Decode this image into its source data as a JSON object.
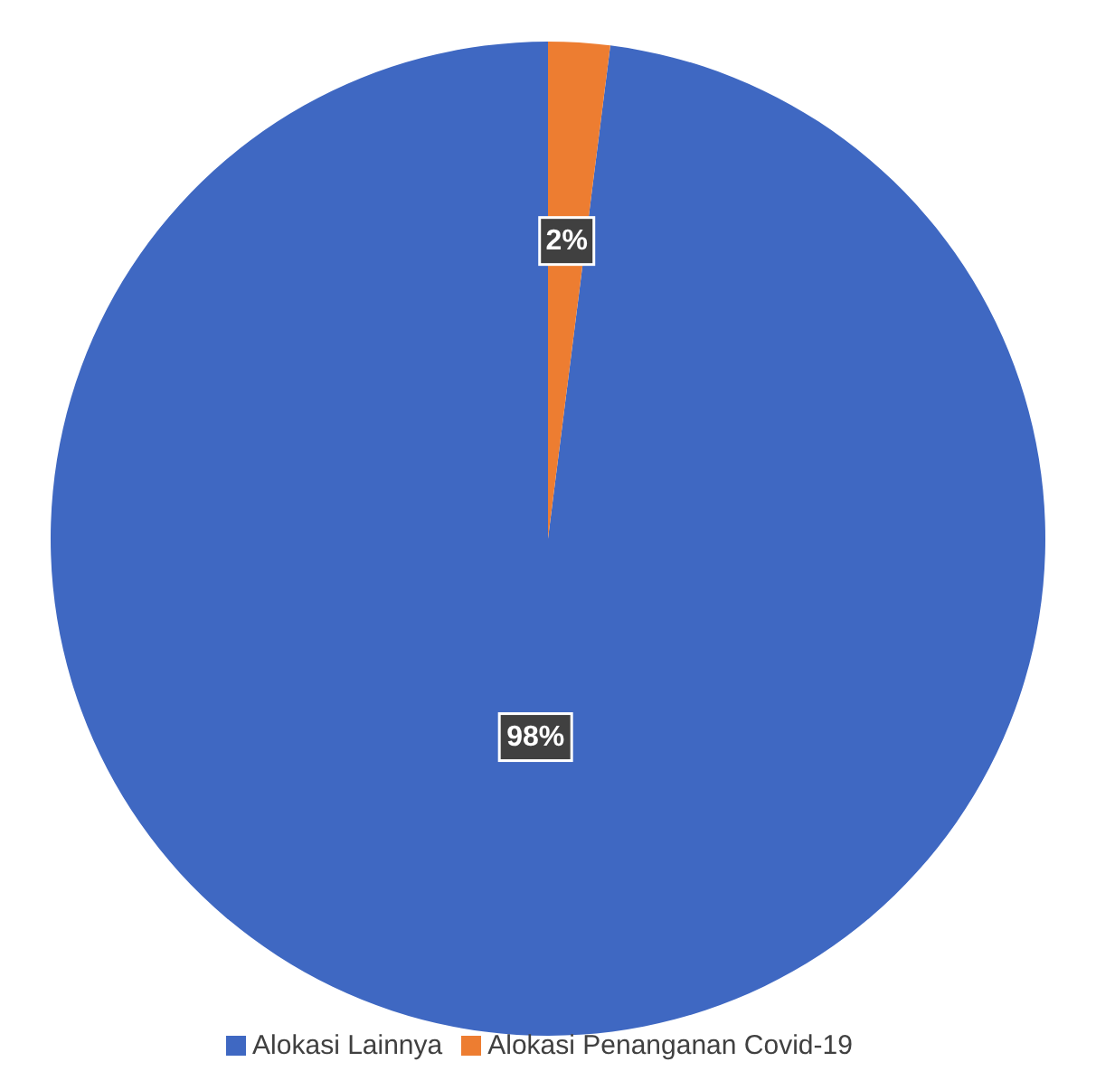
{
  "chart_data": {
    "type": "pie",
    "categories": [
      "Alokasi Lainnya",
      "Alokasi Penanganan Covid-19"
    ],
    "values": [
      98,
      2
    ],
    "colors": [
      "#3f68c2",
      "#ed7d31"
    ],
    "value_labels": [
      "98%",
      "2%"
    ],
    "legend": "bottom"
  }
}
